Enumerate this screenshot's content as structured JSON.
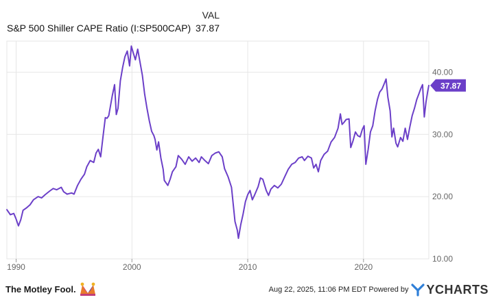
{
  "legend": {
    "column_header": "VAL",
    "series_name": "S&P 500 Shiller CAPE Ratio (I:SP500CAP)",
    "series_value": "37.87"
  },
  "chart_data": {
    "type": "line",
    "series": [
      {
        "name": "S&P 500 Shiller CAPE Ratio (I:SP500CAP)",
        "color": "#6b3fc8",
        "points": [
          [
            1989.2,
            17.9
          ],
          [
            1989.5,
            17.1
          ],
          [
            1989.8,
            17.3
          ],
          [
            1990.0,
            16.4
          ],
          [
            1990.2,
            15.3
          ],
          [
            1990.4,
            16.3
          ],
          [
            1990.6,
            17.8
          ],
          [
            1990.9,
            18.2
          ],
          [
            1991.2,
            18.7
          ],
          [
            1991.5,
            19.5
          ],
          [
            1991.9,
            20.0
          ],
          [
            1992.2,
            19.8
          ],
          [
            1992.5,
            20.3
          ],
          [
            1992.9,
            20.9
          ],
          [
            1993.2,
            21.3
          ],
          [
            1993.5,
            21.1
          ],
          [
            1993.9,
            21.5
          ],
          [
            1994.1,
            20.8
          ],
          [
            1994.4,
            20.4
          ],
          [
            1994.8,
            20.6
          ],
          [
            1995.0,
            20.4
          ],
          [
            1995.3,
            21.8
          ],
          [
            1995.6,
            22.8
          ],
          [
            1995.9,
            23.6
          ],
          [
            1996.1,
            24.8
          ],
          [
            1996.4,
            25.8
          ],
          [
            1996.7,
            25.5
          ],
          [
            1996.9,
            27.0
          ],
          [
            1997.1,
            27.6
          ],
          [
            1997.3,
            26.4
          ],
          [
            1997.5,
            29.6
          ],
          [
            1997.7,
            32.7
          ],
          [
            1997.85,
            32.6
          ],
          [
            1998.0,
            33.0
          ],
          [
            1998.3,
            36.2
          ],
          [
            1998.5,
            38.0
          ],
          [
            1998.65,
            33.2
          ],
          [
            1998.8,
            34.2
          ],
          [
            1999.0,
            38.6
          ],
          [
            1999.2,
            40.8
          ],
          [
            1999.4,
            42.5
          ],
          [
            1999.6,
            43.4
          ],
          [
            1999.8,
            41.0
          ],
          [
            1999.95,
            44.2
          ],
          [
            2000.1,
            43.2
          ],
          [
            2000.3,
            42.0
          ],
          [
            2000.5,
            43.7
          ],
          [
            2000.7,
            41.6
          ],
          [
            2000.9,
            39.5
          ],
          [
            2001.1,
            36.5
          ],
          [
            2001.3,
            34.2
          ],
          [
            2001.5,
            32.2
          ],
          [
            2001.7,
            30.5
          ],
          [
            2001.9,
            29.8
          ],
          [
            2002.0,
            29.2
          ],
          [
            2002.15,
            27.5
          ],
          [
            2002.3,
            28.8
          ],
          [
            2002.5,
            26.2
          ],
          [
            2002.7,
            24.4
          ],
          [
            2002.8,
            22.6
          ],
          [
            2002.95,
            22.2
          ],
          [
            2003.1,
            21.8
          ],
          [
            2003.3,
            22.8
          ],
          [
            2003.5,
            24.0
          ],
          [
            2003.8,
            24.8
          ],
          [
            2004.0,
            26.6
          ],
          [
            2004.3,
            26.0
          ],
          [
            2004.6,
            25.2
          ],
          [
            2004.9,
            26.4
          ],
          [
            2005.2,
            25.7
          ],
          [
            2005.5,
            26.2
          ],
          [
            2005.8,
            25.5
          ],
          [
            2006.0,
            26.4
          ],
          [
            2006.3,
            25.8
          ],
          [
            2006.6,
            25.3
          ],
          [
            2006.9,
            26.6
          ],
          [
            2007.2,
            27.0
          ],
          [
            2007.5,
            27.2
          ],
          [
            2007.8,
            26.4
          ],
          [
            2008.0,
            24.5
          ],
          [
            2008.3,
            23.2
          ],
          [
            2008.6,
            21.5
          ],
          [
            2008.75,
            18.8
          ],
          [
            2008.9,
            16.0
          ],
          [
            2009.1,
            14.6
          ],
          [
            2009.2,
            13.3
          ],
          [
            2009.4,
            15.5
          ],
          [
            2009.6,
            17.2
          ],
          [
            2009.8,
            19.2
          ],
          [
            2010.0,
            20.3
          ],
          [
            2010.2,
            21.0
          ],
          [
            2010.4,
            19.5
          ],
          [
            2010.6,
            20.3
          ],
          [
            2010.9,
            21.6
          ],
          [
            2011.1,
            23.0
          ],
          [
            2011.3,
            22.8
          ],
          [
            2011.6,
            21.0
          ],
          [
            2011.8,
            20.2
          ],
          [
            2012.0,
            21.2
          ],
          [
            2012.3,
            21.8
          ],
          [
            2012.6,
            21.4
          ],
          [
            2012.9,
            22.0
          ],
          [
            2013.2,
            23.2
          ],
          [
            2013.5,
            24.4
          ],
          [
            2013.8,
            25.2
          ],
          [
            2014.1,
            25.5
          ],
          [
            2014.4,
            26.2
          ],
          [
            2014.7,
            26.4
          ],
          [
            2014.9,
            25.8
          ],
          [
            2015.2,
            26.5
          ],
          [
            2015.5,
            26.2
          ],
          [
            2015.7,
            24.6
          ],
          [
            2015.9,
            25.2
          ],
          [
            2016.1,
            24.0
          ],
          [
            2016.3,
            25.8
          ],
          [
            2016.6,
            26.8
          ],
          [
            2016.9,
            27.3
          ],
          [
            2017.2,
            28.8
          ],
          [
            2017.5,
            29.5
          ],
          [
            2017.8,
            31.0
          ],
          [
            2018.0,
            33.3
          ],
          [
            2018.15,
            31.6
          ],
          [
            2018.3,
            31.9
          ],
          [
            2018.5,
            32.4
          ],
          [
            2018.75,
            32.5
          ],
          [
            2018.9,
            27.9
          ],
          [
            2019.1,
            29.0
          ],
          [
            2019.3,
            30.4
          ],
          [
            2019.5,
            29.8
          ],
          [
            2019.7,
            29.6
          ],
          [
            2019.9,
            30.8
          ],
          [
            2020.05,
            31.4
          ],
          [
            2020.2,
            25.2
          ],
          [
            2020.4,
            27.6
          ],
          [
            2020.6,
            30.4
          ],
          [
            2020.8,
            31.4
          ],
          [
            2021.0,
            33.8
          ],
          [
            2021.2,
            35.6
          ],
          [
            2021.4,
            36.8
          ],
          [
            2021.6,
            37.3
          ],
          [
            2021.8,
            38.2
          ],
          [
            2021.95,
            38.9
          ],
          [
            2022.1,
            36.0
          ],
          [
            2022.3,
            33.8
          ],
          [
            2022.45,
            29.6
          ],
          [
            2022.6,
            31.0
          ],
          [
            2022.8,
            28.6
          ],
          [
            2022.95,
            28.0
          ],
          [
            2023.2,
            29.5
          ],
          [
            2023.4,
            28.9
          ],
          [
            2023.6,
            31.0
          ],
          [
            2023.8,
            29.2
          ],
          [
            2024.0,
            31.2
          ],
          [
            2024.2,
            33.0
          ],
          [
            2024.4,
            34.2
          ],
          [
            2024.6,
            35.6
          ],
          [
            2024.8,
            36.6
          ],
          [
            2024.95,
            37.4
          ],
          [
            2025.1,
            38.0
          ],
          [
            2025.25,
            32.8
          ],
          [
            2025.4,
            35.2
          ],
          [
            2025.55,
            37.0
          ],
          [
            2025.64,
            37.87
          ]
        ]
      }
    ],
    "xlim": [
      1989.2,
      2025.64
    ],
    "ylim": [
      10,
      45
    ],
    "x_ticks": [
      {
        "value": 1990,
        "label": "1990"
      },
      {
        "value": 2000,
        "label": "2000"
      },
      {
        "value": 2010,
        "label": "2010"
      },
      {
        "value": 2020,
        "label": "2020"
      }
    ],
    "y_ticks": [
      {
        "value": 10,
        "label": "10.00"
      },
      {
        "value": 20,
        "label": "20.00"
      },
      {
        "value": 30,
        "label": "30.00"
      },
      {
        "value": 40,
        "label": "40.00"
      }
    ],
    "last_value_label": "37.87",
    "grid": true,
    "legend_position": "top-left"
  },
  "footer": {
    "brand": "The Motley Fool.",
    "timestamp": "Aug 22, 2025, 11:06 PM EDT  Powered by",
    "provider": "YCHARTS"
  },
  "colors": {
    "line": "#6b3fc8",
    "badge": "#6b3fc8",
    "grid": "#e6e6e6",
    "axis_text": "#666666"
  }
}
